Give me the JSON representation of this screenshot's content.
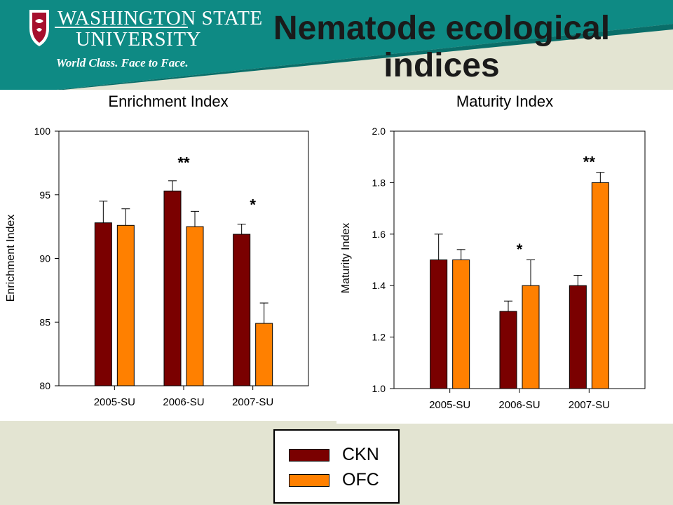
{
  "header": {
    "title_line1": "Nematode ecological",
    "title_line2": "indices",
    "logo_line1": "WASHINGTON STATE",
    "logo_line2": "UNIVERSITY",
    "logo_tagline": "World Class. Face to Face.",
    "banner_color": "#0e8a84",
    "background_color": "#e3e4d2"
  },
  "legend": {
    "items": [
      {
        "label": "CKN",
        "color": "#7a0000"
      },
      {
        "label": "OFC",
        "color": "#ff8000"
      }
    ]
  },
  "chart_data": [
    {
      "type": "bar",
      "title": "Enrichment Index",
      "ylabel": "Enrichment Index",
      "xlabel": "",
      "categories": [
        "2005-SU",
        "2006-SU",
        "2007-SU"
      ],
      "ylim": [
        80,
        100
      ],
      "yticks": [
        "80",
        "85",
        "90",
        "95",
        "100"
      ],
      "series": [
        {
          "name": "CKN",
          "color": "#7a0000",
          "values": [
            92.8,
            95.3,
            91.9
          ],
          "errors": [
            1.7,
            0.8,
            0.8
          ]
        },
        {
          "name": "OFC",
          "color": "#ff8000",
          "values": [
            92.6,
            92.5,
            84.9
          ],
          "errors": [
            1.3,
            1.2,
            1.6
          ]
        }
      ],
      "annotations": [
        {
          "category": "2006-SU",
          "text": "**",
          "y": 97.1
        },
        {
          "category": "2007-SU",
          "text": "*",
          "y": 93.8
        }
      ]
    },
    {
      "type": "bar",
      "title": "Maturity Index",
      "ylabel": "Maturity Index",
      "xlabel": "",
      "categories": [
        "2005-SU",
        "2006-SU",
        "2007-SU"
      ],
      "ylim": [
        1.0,
        2.0
      ],
      "yticks": [
        "1.0",
        "1.2",
        "1.4",
        "1.6",
        "1.8",
        "2.0"
      ],
      "series": [
        {
          "name": "CKN",
          "color": "#7a0000",
          "values": [
            1.5,
            1.3,
            1.4
          ],
          "errors": [
            0.1,
            0.04,
            0.04
          ]
        },
        {
          "name": "OFC",
          "color": "#ff8000",
          "values": [
            1.5,
            1.4,
            1.8
          ],
          "errors": [
            0.04,
            0.1,
            0.04
          ]
        }
      ],
      "annotations": [
        {
          "category": "2006-SU",
          "text": "*",
          "y": 1.52
        },
        {
          "category": "2007-SU",
          "text": "**",
          "y": 1.86
        }
      ]
    }
  ]
}
